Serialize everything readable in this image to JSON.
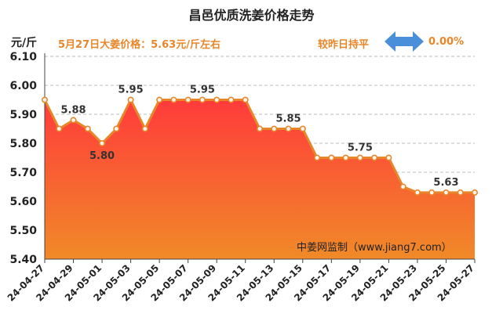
{
  "header": {
    "title": "昌邑优质洗姜价格走势",
    "unit": "元/斤",
    "price_note": "5月27日大姜价格：5.63元/斤左右",
    "compare_label": "较昨日持平",
    "compare_value": "0.00%",
    "compare_icon": "double-arrow-icon"
  },
  "watermark": "中姜网监制（www.jiang7.com）",
  "colors": {
    "line": "#e8862a",
    "fill_top": "#ff3b3b",
    "fill_bottom": "#f08a28",
    "text_accent": "#e8862a",
    "arrow": "#4a8fd9"
  },
  "chart_data": {
    "type": "area",
    "title": "昌邑优质洗姜价格走势",
    "ylabel": "元/斤",
    "xlabel": "",
    "ylim": [
      5.4,
      6.1
    ],
    "yticks": [
      "6.10",
      "6.00",
      "5.90",
      "5.80",
      "5.70",
      "5.60",
      "5.50",
      "5.40"
    ],
    "grid": true,
    "x": [
      "24-04-27",
      "24-04-28",
      "24-04-29",
      "24-04-30",
      "24-05-01",
      "24-05-02",
      "24-05-03",
      "24-05-04",
      "24-05-05",
      "24-05-06",
      "24-05-07",
      "24-05-08",
      "24-05-09",
      "24-05-10",
      "24-05-11",
      "24-05-12",
      "24-05-13",
      "24-05-14",
      "24-05-15",
      "24-05-16",
      "24-05-17",
      "24-05-18",
      "24-05-19",
      "24-05-20",
      "24-05-21",
      "24-05-22",
      "24-05-23",
      "24-05-24",
      "24-05-25",
      "24-05-26",
      "24-05-27"
    ],
    "xtick_labels": [
      "24-04-27",
      "24-04-29",
      "24-05-01",
      "24-05-03",
      "24-05-05",
      "24-05-07",
      "24-05-09",
      "24-05-11",
      "24-05-13",
      "24-05-15",
      "24-05-17",
      "24-05-19",
      "24-05-21",
      "24-05-23",
      "24-05-25",
      "24-05-27"
    ],
    "values": [
      5.95,
      5.85,
      5.88,
      5.85,
      5.8,
      5.85,
      5.95,
      5.85,
      5.95,
      5.95,
      5.95,
      5.95,
      5.95,
      5.95,
      5.95,
      5.85,
      5.85,
      5.85,
      5.85,
      5.75,
      5.75,
      5.75,
      5.75,
      5.75,
      5.75,
      5.65,
      5.63,
      5.63,
      5.63,
      5.63,
      5.63
    ],
    "data_labels": [
      {
        "index": 2,
        "text": "5.88"
      },
      {
        "index": 4,
        "text": "5.80"
      },
      {
        "index": 6,
        "text": "5.95"
      },
      {
        "index": 11,
        "text": "5.95"
      },
      {
        "index": 17,
        "text": "5.85"
      },
      {
        "index": 22,
        "text": "5.75"
      },
      {
        "index": 28,
        "text": "5.63"
      }
    ]
  }
}
